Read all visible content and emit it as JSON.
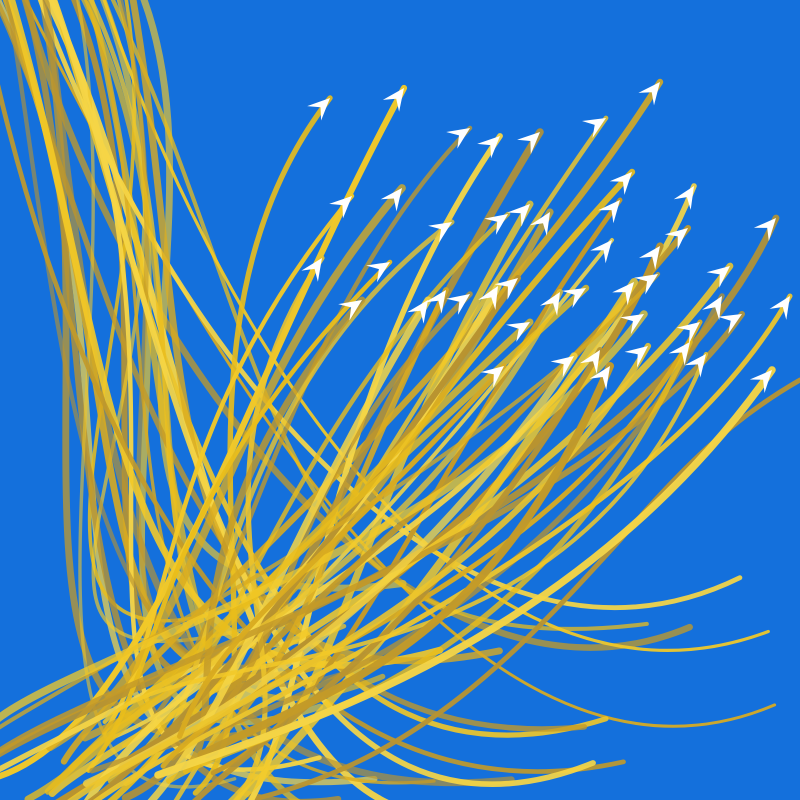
{
  "background_color": "#1470dc",
  "stroke_colors": [
    "#e9bd1b",
    "#f2c928",
    "#d9ab20",
    "#c39a28",
    "#f5d546",
    "#b89330",
    "#ecc52c"
  ],
  "arrowhead_color": "#ffffff",
  "arrow_icon": "arrowhead-icon"
}
